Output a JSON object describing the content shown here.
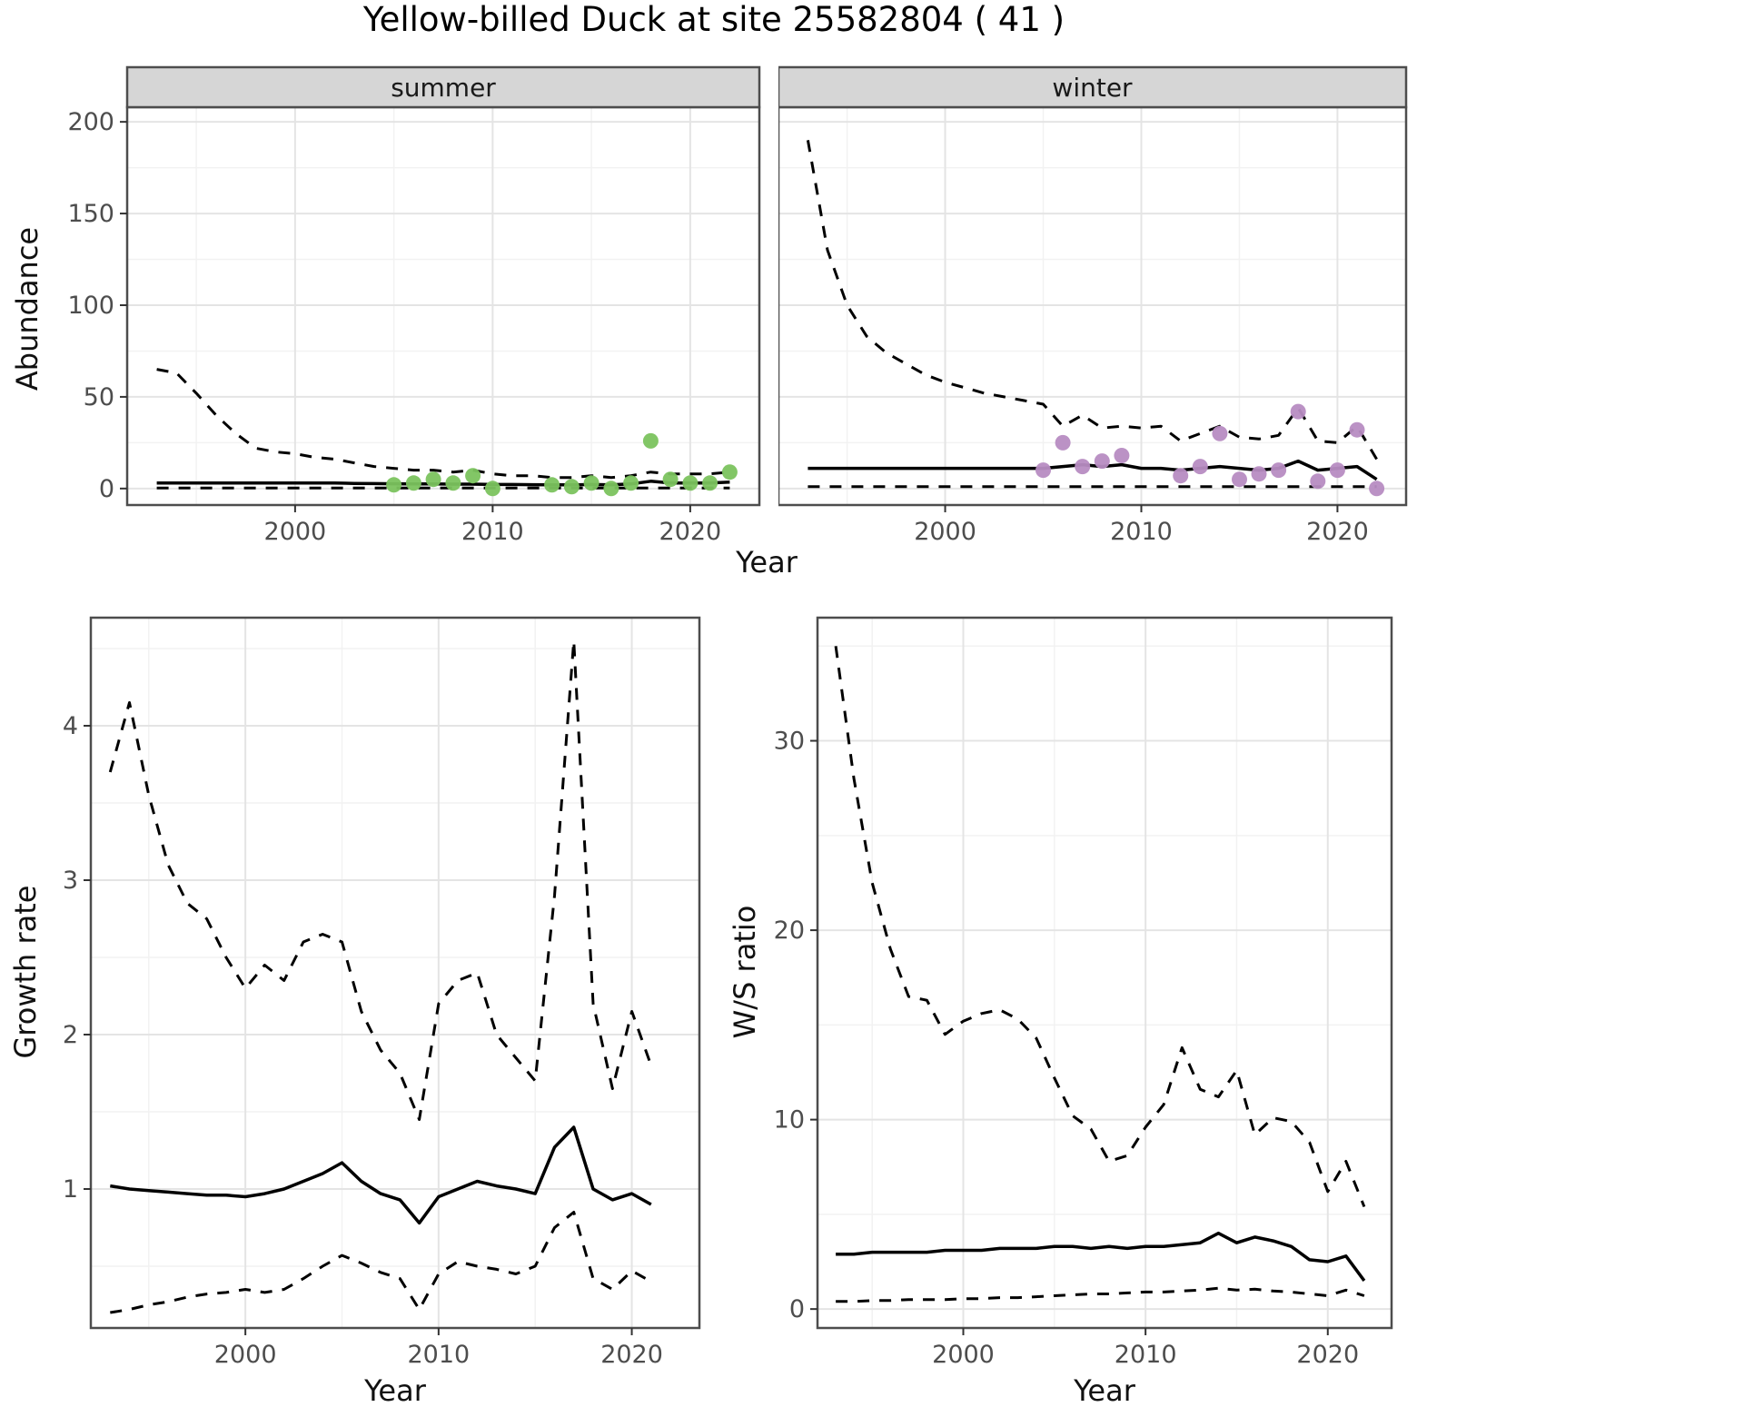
{
  "title": "Yellow-billed Duck at site 25582804 ( 41 )",
  "axes": {
    "year": "Year",
    "abundance": "Abundance",
    "growth": "Growth rate",
    "ws": "W/S ratio"
  },
  "colors": {
    "line": "#000000",
    "grid_major": "#e4e4e4",
    "grid_minor": "#f2f2f2",
    "panel_border": "#4d4d4d",
    "strip_bg": "#d6d6d6",
    "strip_text": "#1a1a1a",
    "axis_text": "#4d4d4d",
    "summer_points": "#7bc35e",
    "winter_points": "#b78cc2"
  },
  "chart_data": [
    {
      "id": "abundance-summer",
      "type": "line",
      "facet_label": "summer",
      "xlabel": "Year",
      "ylabel": "Abundance",
      "xlim": [
        1991.5,
        2023.5
      ],
      "ylim": [
        -9,
        208
      ],
      "xticks": [
        2000,
        2010,
        2020
      ],
      "yticks": [
        0,
        50,
        100,
        150,
        200
      ],
      "grid": true,
      "legend": "none",
      "series": [
        {
          "name": "upper-ci",
          "style": "dashed",
          "color": "#000000",
          "x": [
            1993,
            1994,
            1995,
            1996,
            1997,
            1998,
            1999,
            2000,
            2001,
            2002,
            2003,
            2004,
            2005,
            2006,
            2007,
            2008,
            2009,
            2010,
            2011,
            2012,
            2013,
            2014,
            2015,
            2016,
            2017,
            2018,
            2019,
            2020,
            2021,
            2022
          ],
          "y": [
            65,
            63,
            52,
            40,
            30,
            22,
            20,
            19,
            17,
            16,
            14,
            12,
            11,
            10,
            10,
            9,
            10,
            8,
            7,
            7,
            6,
            6,
            7,
            6,
            7,
            9,
            8,
            8,
            8,
            9
          ]
        },
        {
          "name": "median",
          "style": "solid",
          "color": "#000000",
          "x": [
            1993,
            1994,
            1995,
            1996,
            1997,
            1998,
            1999,
            2000,
            2001,
            2002,
            2003,
            2004,
            2005,
            2006,
            2007,
            2008,
            2009,
            2010,
            2011,
            2012,
            2013,
            2014,
            2015,
            2016,
            2017,
            2018,
            2019,
            2020,
            2021,
            2022
          ],
          "y": [
            3,
            3,
            3,
            3,
            3,
            3,
            3,
            3,
            3,
            3,
            2.8,
            2.7,
            2.6,
            2.5,
            2.5,
            2.4,
            2.4,
            2.2,
            2.2,
            2.1,
            2,
            2,
            2.2,
            2,
            2.5,
            4,
            3,
            3,
            3,
            3.5
          ]
        },
        {
          "name": "lower-ci",
          "style": "dashed",
          "color": "#000000",
          "x": [
            1993,
            1994,
            1995,
            1996,
            1997,
            1998,
            1999,
            2000,
            2001,
            2002,
            2003,
            2004,
            2005,
            2006,
            2007,
            2008,
            2009,
            2010,
            2011,
            2012,
            2013,
            2014,
            2015,
            2016,
            2017,
            2018,
            2019,
            2020,
            2021,
            2022
          ],
          "y": [
            0.3,
            0.3,
            0.3,
            0.3,
            0.3,
            0.3,
            0.3,
            0.3,
            0.3,
            0.3,
            0.3,
            0.3,
            0.3,
            0.3,
            0.3,
            0.3,
            0.3,
            0.3,
            0.3,
            0.3,
            0.3,
            0.3,
            0.3,
            0.3,
            0.3,
            0.3,
            0.3,
            0.3,
            0.3,
            0.3
          ]
        },
        {
          "name": "observed-counts",
          "style": "points",
          "color": "#7bc35e",
          "x": [
            2005,
            2006,
            2007,
            2008,
            2009,
            2010,
            2013,
            2014,
            2015,
            2016,
            2017,
            2018,
            2019,
            2020,
            2021,
            2022
          ],
          "y": [
            2,
            3,
            5,
            3,
            7,
            0,
            2,
            1,
            3,
            0,
            3,
            26,
            5,
            3,
            3,
            9
          ]
        }
      ]
    },
    {
      "id": "abundance-winter",
      "type": "line",
      "facet_label": "winter",
      "xlabel": "Year",
      "ylabel": "Abundance",
      "xlim": [
        1991.5,
        2023.5
      ],
      "ylim": [
        -9,
        208
      ],
      "xticks": [
        2000,
        2010,
        2020
      ],
      "yticks": [
        0,
        50,
        100,
        150,
        200
      ],
      "grid": true,
      "legend": "none",
      "series": [
        {
          "name": "upper-ci",
          "style": "dashed",
          "color": "#000000",
          "x": [
            1993,
            1994,
            1995,
            1996,
            1997,
            1998,
            1999,
            2000,
            2001,
            2002,
            2003,
            2004,
            2005,
            2006,
            2007,
            2008,
            2009,
            2010,
            2011,
            2012,
            2013,
            2014,
            2015,
            2016,
            2017,
            2018,
            2019,
            2020,
            2021,
            2022
          ],
          "y": [
            190,
            130,
            100,
            83,
            74,
            68,
            62,
            58,
            55,
            52,
            50,
            48,
            46,
            34,
            40,
            33,
            34,
            33,
            34,
            26,
            30,
            34,
            28,
            27,
            29,
            44,
            26,
            25,
            34,
            16
          ]
        },
        {
          "name": "median",
          "style": "solid",
          "color": "#000000",
          "x": [
            1993,
            1994,
            1995,
            1996,
            1997,
            1998,
            1999,
            2000,
            2001,
            2002,
            2003,
            2004,
            2005,
            2006,
            2007,
            2008,
            2009,
            2010,
            2011,
            2012,
            2013,
            2014,
            2015,
            2016,
            2017,
            2018,
            2019,
            2020,
            2021,
            2022
          ],
          "y": [
            11,
            11,
            11,
            11,
            11,
            11,
            11,
            11,
            11,
            11,
            11,
            11,
            11,
            12,
            13,
            12,
            13,
            11,
            11,
            10,
            11,
            12,
            11,
            10,
            11,
            15,
            10,
            11,
            12,
            5
          ]
        },
        {
          "name": "lower-ci",
          "style": "dashed",
          "color": "#000000",
          "x": [
            1993,
            1994,
            1995,
            1996,
            1997,
            1998,
            1999,
            2000,
            2001,
            2002,
            2003,
            2004,
            2005,
            2006,
            2007,
            2008,
            2009,
            2010,
            2011,
            2012,
            2013,
            2014,
            2015,
            2016,
            2017,
            2018,
            2019,
            2020,
            2021,
            2022
          ],
          "y": [
            1,
            1,
            1,
            1,
            1,
            1,
            1,
            1,
            1,
            1,
            1,
            1,
            1,
            1,
            1,
            1,
            1,
            1,
            1,
            1,
            1,
            1,
            1,
            1,
            1,
            1,
            1,
            1,
            1,
            1
          ]
        },
        {
          "name": "observed-counts",
          "style": "points",
          "color": "#b78cc2",
          "x": [
            2005,
            2006,
            2007,
            2008,
            2009,
            2012,
            2013,
            2014,
            2015,
            2016,
            2017,
            2018,
            2019,
            2020,
            2021,
            2022
          ],
          "y": [
            10,
            25,
            12,
            15,
            18,
            7,
            12,
            30,
            5,
            8,
            10,
            42,
            4,
            10,
            32,
            0
          ]
        }
      ]
    },
    {
      "id": "growth-rate",
      "type": "line",
      "facet_label": "",
      "xlabel": "Year",
      "ylabel": "Growth rate",
      "xlim": [
        1992,
        2023.5
      ],
      "ylim": [
        0.1,
        4.7
      ],
      "xticks": [
        2000,
        2010,
        2020
      ],
      "yticks": [
        1,
        2,
        3,
        4
      ],
      "grid": true,
      "legend": "none",
      "series": [
        {
          "name": "upper-ci",
          "style": "dashed",
          "color": "#000000",
          "x": [
            1993,
            1994,
            1995,
            1996,
            1997,
            1998,
            1999,
            2000,
            2001,
            2002,
            2003,
            2004,
            2005,
            2006,
            2007,
            2008,
            2009,
            2010,
            2011,
            2012,
            2013,
            2014,
            2015,
            2016,
            2017,
            2018,
            2019,
            2020,
            2021
          ],
          "y": [
            3.7,
            4.15,
            3.55,
            3.1,
            2.85,
            2.75,
            2.5,
            2.3,
            2.45,
            2.35,
            2.6,
            2.65,
            2.6,
            2.15,
            1.9,
            1.75,
            1.45,
            2.2,
            2.35,
            2.4,
            2.0,
            1.85,
            1.7,
            2.9,
            4.55,
            2.2,
            1.65,
            2.15,
            1.8
          ]
        },
        {
          "name": "median",
          "style": "solid",
          "color": "#000000",
          "x": [
            1993,
            1994,
            1995,
            1996,
            1997,
            1998,
            1999,
            2000,
            2001,
            2002,
            2003,
            2004,
            2005,
            2006,
            2007,
            2008,
            2009,
            2010,
            2011,
            2012,
            2013,
            2014,
            2015,
            2016,
            2017,
            2018,
            2019,
            2020,
            2021
          ],
          "y": [
            1.02,
            1.0,
            0.99,
            0.98,
            0.97,
            0.96,
            0.96,
            0.95,
            0.97,
            1.0,
            1.05,
            1.1,
            1.17,
            1.05,
            0.97,
            0.93,
            0.78,
            0.95,
            1.0,
            1.05,
            1.02,
            1.0,
            0.97,
            1.27,
            1.4,
            1.0,
            0.93,
            0.97,
            0.9
          ]
        },
        {
          "name": "lower-ci",
          "style": "dashed",
          "color": "#000000",
          "x": [
            1993,
            1994,
            1995,
            1996,
            1997,
            1998,
            1999,
            2000,
            2001,
            2002,
            2003,
            2004,
            2005,
            2006,
            2007,
            2008,
            2009,
            2010,
            2011,
            2012,
            2013,
            2014,
            2015,
            2016,
            2017,
            2018,
            2019,
            2020,
            2021
          ],
          "y": [
            0.2,
            0.22,
            0.25,
            0.27,
            0.3,
            0.32,
            0.33,
            0.35,
            0.33,
            0.35,
            0.42,
            0.5,
            0.57,
            0.52,
            0.46,
            0.42,
            0.22,
            0.45,
            0.53,
            0.5,
            0.48,
            0.45,
            0.5,
            0.75,
            0.85,
            0.42,
            0.35,
            0.47,
            0.4
          ]
        }
      ]
    },
    {
      "id": "ws-ratio",
      "type": "line",
      "facet_label": "",
      "xlabel": "Year",
      "ylabel": "W/S ratio",
      "xlim": [
        1992,
        2023.5
      ],
      "ylim": [
        -1,
        36.5
      ],
      "xticks": [
        2000,
        2010,
        2020
      ],
      "yticks": [
        0,
        10,
        20,
        30
      ],
      "grid": true,
      "legend": "none",
      "series": [
        {
          "name": "upper-ci",
          "style": "dashed",
          "color": "#000000",
          "x": [
            1993,
            1994,
            1995,
            1996,
            1997,
            1998,
            1999,
            2000,
            2001,
            2002,
            2003,
            2004,
            2005,
            2006,
            2007,
            2008,
            2009,
            2010,
            2011,
            2012,
            2013,
            2014,
            2015,
            2016,
            2017,
            2018,
            2019,
            2020,
            2021,
            2022
          ],
          "y": [
            35,
            28,
            22.5,
            19,
            16.5,
            16.3,
            14.5,
            15.2,
            15.6,
            15.8,
            15.3,
            14.3,
            12.2,
            10.2,
            9.5,
            7.8,
            8.1,
            9.6,
            10.8,
            13.8,
            11.6,
            11.2,
            12.6,
            9.2,
            10.1,
            9.9,
            8.8,
            6.2,
            7.8,
            5.4
          ]
        },
        {
          "name": "median",
          "style": "solid",
          "color": "#000000",
          "x": [
            1993,
            1994,
            1995,
            1996,
            1997,
            1998,
            1999,
            2000,
            2001,
            2002,
            2003,
            2004,
            2005,
            2006,
            2007,
            2008,
            2009,
            2010,
            2011,
            2012,
            2013,
            2014,
            2015,
            2016,
            2017,
            2018,
            2019,
            2020,
            2021,
            2022
          ],
          "y": [
            2.9,
            2.9,
            3.0,
            3.0,
            3.0,
            3.0,
            3.1,
            3.1,
            3.1,
            3.2,
            3.2,
            3.2,
            3.3,
            3.3,
            3.2,
            3.3,
            3.2,
            3.3,
            3.3,
            3.4,
            3.5,
            4.0,
            3.5,
            3.8,
            3.6,
            3.3,
            2.6,
            2.5,
            2.8,
            1.5
          ]
        },
        {
          "name": "lower-ci",
          "style": "dashed",
          "color": "#000000",
          "x": [
            1993,
            1994,
            1995,
            1996,
            1997,
            1998,
            1999,
            2000,
            2001,
            2002,
            2003,
            2004,
            2005,
            2006,
            2007,
            2008,
            2009,
            2010,
            2011,
            2012,
            2013,
            2014,
            2015,
            2016,
            2017,
            2018,
            2019,
            2020,
            2021,
            2022
          ],
          "y": [
            0.4,
            0.4,
            0.45,
            0.45,
            0.5,
            0.5,
            0.5,
            0.55,
            0.55,
            0.6,
            0.6,
            0.65,
            0.7,
            0.75,
            0.8,
            0.8,
            0.85,
            0.9,
            0.9,
            0.95,
            1.0,
            1.1,
            1.0,
            1.05,
            0.95,
            0.9,
            0.8,
            0.7,
            1.0,
            0.7
          ]
        }
      ]
    }
  ]
}
